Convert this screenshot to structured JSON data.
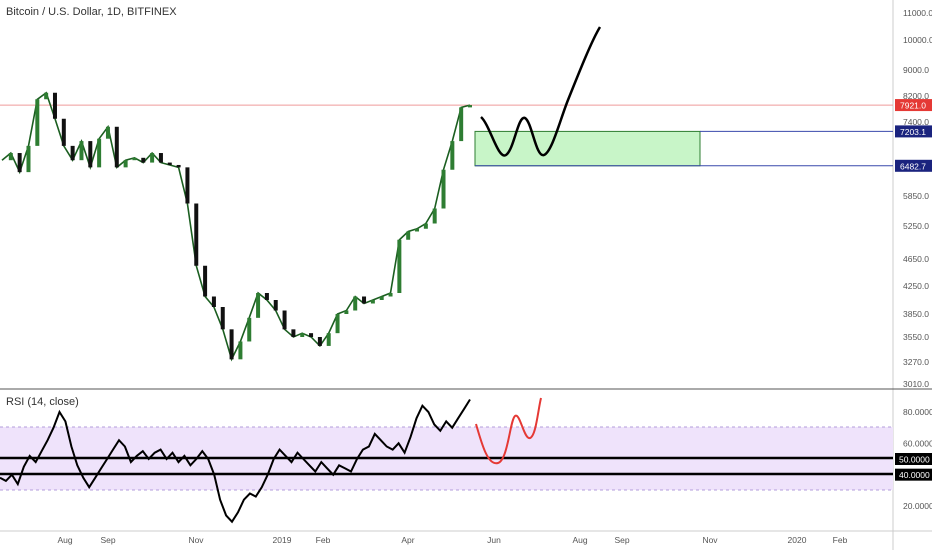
{
  "chart_data": [
    {
      "type": "candlestick",
      "title": "Bitcoin / U.S. Dollar, 1D, BITFINEX",
      "y_axis_ticks": [
        "11000.0",
        "10000.0",
        "9000.0",
        "8200.0",
        "7400.0",
        "5850.0",
        "5250.0",
        "4650.0",
        "4250.0",
        "3850.0",
        "3550.0",
        "3270.0",
        "3010.0"
      ],
      "x_axis_ticks": [
        "Aug",
        "Sep",
        "Nov",
        "2019",
        "Feb",
        "Apr",
        "Jun",
        "Aug",
        "Sep",
        "Nov",
        "2020",
        "Feb"
      ],
      "price_labels": [
        {
          "label": "7921.0",
          "value": 7921.0,
          "color": "#e53935"
        },
        {
          "label": "7203.1",
          "value": 7203.1,
          "color": "#1a237e"
        },
        {
          "label": "6482.7",
          "value": 6482.7,
          "color": "#1a237e"
        }
      ],
      "series": [
        {
          "kind": "close",
          "values": [
            6600,
            6750,
            6350,
            6900,
            8100,
            8300,
            7500,
            6900,
            6600,
            7000,
            6450,
            7050,
            7300,
            6450,
            6600,
            6650,
            6550,
            6750,
            6550,
            6500,
            6450,
            5700,
            4550,
            4100,
            3950,
            3650,
            3300,
            3500,
            3800,
            4150,
            4050,
            3900,
            3650,
            3550,
            3600,
            3550,
            3450,
            3600,
            3850,
            3900,
            4100,
            4000,
            4050,
            4100,
            4150,
            5000,
            5150,
            5200,
            5300,
            5600,
            6400,
            7000,
            7850,
            7921
          ]
        }
      ],
      "zone": {
        "upper": 7203.1,
        "lower": 6482.7,
        "color": "#c8f5c8"
      },
      "horizontal_line": {
        "value": 7921.0,
        "color": "#ef9a9a"
      }
    },
    {
      "type": "line",
      "title": "RSI (14, close)",
      "y_axis_ticks": [
        "80.0000",
        "60.0000",
        "20.0000"
      ],
      "levels": [
        {
          "label": "50.0000",
          "value": 50
        },
        {
          "label": "40.0000",
          "value": 40
        }
      ],
      "band": [
        30,
        70
      ],
      "series": [
        {
          "values": [
            38,
            36,
            40,
            34,
            45,
            52,
            48,
            55,
            62,
            70,
            80,
            74,
            58,
            46,
            38,
            32,
            38,
            44,
            50,
            56,
            62,
            58,
            48,
            52,
            55,
            50,
            54,
            56,
            50,
            54,
            48,
            52,
            46,
            50,
            55,
            50,
            40,
            24,
            14,
            10,
            16,
            24,
            28,
            26,
            32,
            40,
            50,
            56,
            52,
            48,
            54,
            50,
            46,
            42,
            48,
            44,
            40,
            46,
            44,
            42,
            50,
            56,
            58,
            66,
            62,
            58,
            56,
            60,
            54,
            64,
            76,
            84,
            80,
            72,
            68,
            74,
            70,
            76,
            82,
            88
          ]
        }
      ]
    }
  ]
}
